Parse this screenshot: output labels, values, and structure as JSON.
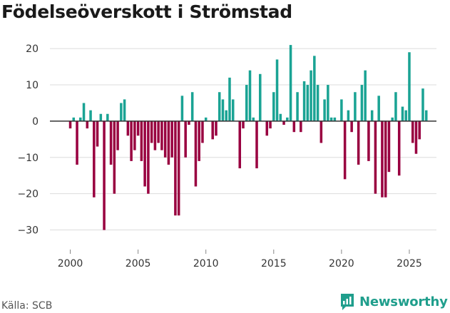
{
  "chart_data": {
    "type": "bar",
    "title": "Födelseöverskott i Strömstad",
    "xlabel": "",
    "ylabel": "",
    "ylim": [
      -35,
      22
    ],
    "xlim": [
      1998.5,
      2027
    ],
    "y_ticks": [
      20,
      10,
      0,
      -10,
      -20,
      -30
    ],
    "y_tick_labels": [
      "20",
      "10",
      "0",
      "−10",
      "−20",
      "−30"
    ],
    "x_ticks": [
      2000,
      2005,
      2010,
      2015,
      2020,
      2025
    ],
    "x_tick_labels": [
      "2000",
      "2005",
      "2010",
      "2015",
      "2020",
      "2025"
    ],
    "bar_period": "quarter",
    "start": 2000.0,
    "values": [
      -2,
      1,
      -12,
      1,
      5,
      -2,
      3,
      -21,
      -7,
      2,
      -30,
      2,
      -12,
      -20,
      -8,
      5,
      6,
      -4,
      -11,
      -8,
      -4,
      -11,
      -18,
      -20,
      -6,
      -8,
      -6,
      -8,
      -10,
      -12,
      -10,
      -26,
      -26,
      7,
      -10,
      -1,
      8,
      -18,
      -11,
      -6,
      1,
      0,
      -5,
      -4,
      8,
      6,
      3,
      12,
      6,
      0,
      -13,
      -2,
      10,
      14,
      1,
      -13,
      13,
      0,
      -4,
      -2,
      8,
      17,
      2,
      -1,
      1,
      21,
      -3,
      8,
      -3,
      11,
      10,
      14,
      18,
      10,
      -6,
      6,
      10,
      1,
      1,
      0,
      6,
      -16,
      3,
      -3,
      8,
      -12,
      10,
      14,
      -11,
      3,
      -20,
      7,
      -21,
      -21,
      -14,
      1,
      8,
      -15,
      4,
      3,
      19,
      -6,
      -9,
      -5,
      9,
      3
    ],
    "colors": {
      "positive": "#1aa394",
      "negative": "#990040"
    }
  },
  "footer": {
    "source": "Källa: SCB",
    "brand": "Newsworthy"
  },
  "colors": {
    "grid": "#dcdcdc",
    "zero_line": "#333333",
    "brand": "#1f9e8c"
  }
}
